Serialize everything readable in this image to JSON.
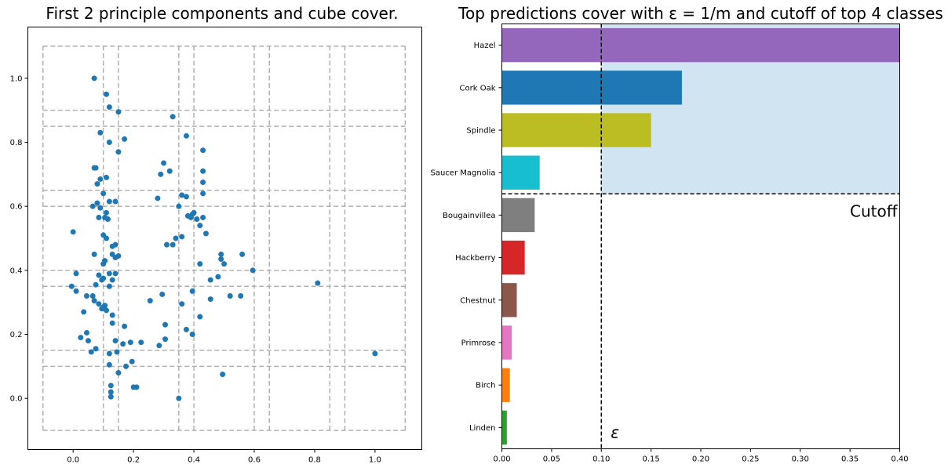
{
  "chart_data": [
    {
      "type": "scatter",
      "title": "First 2 principle components and cube cover.",
      "xlabel": "",
      "ylabel": "",
      "xlim": [
        -0.15,
        1.155
      ],
      "ylim": [
        -0.16,
        1.16
      ],
      "xticks": [
        "0.0",
        "0.2",
        "0.4",
        "0.6",
        "0.8",
        "1.0"
      ],
      "yticks": [
        "0.0",
        "0.2",
        "0.4",
        "0.6",
        "0.8",
        "1.0"
      ],
      "point_color": "#1f77b4",
      "grid": false,
      "cover_lines_x": [
        -0.1,
        0.1,
        0.15,
        0.35,
        0.4,
        0.6,
        0.65,
        0.85,
        0.9,
        1.1
      ],
      "cover_lines_y": [
        -0.1,
        0.1,
        0.15,
        0.35,
        0.4,
        0.6,
        0.65,
        0.85,
        0.9,
        1.1
      ],
      "cover_line_color": "#b0b0b0",
      "points": [
        [
          0.07,
          1.0
        ],
        [
          0.11,
          0.95
        ],
        [
          0.12,
          0.91
        ],
        [
          0.15,
          0.895
        ],
        [
          0.33,
          0.88
        ],
        [
          0.09,
          0.83
        ],
        [
          0.12,
          0.8
        ],
        [
          0.17,
          0.81
        ],
        [
          0.375,
          0.82
        ],
        [
          0.15,
          0.77
        ],
        [
          0.43,
          0.775
        ],
        [
          0.07,
          0.72
        ],
        [
          0.075,
          0.72
        ],
        [
          0.3,
          0.735
        ],
        [
          0.32,
          0.71
        ],
        [
          0.43,
          0.71
        ],
        [
          0.29,
          0.7
        ],
        [
          0.11,
          0.69
        ],
        [
          0.09,
          0.685
        ],
        [
          0.08,
          0.67
        ],
        [
          0.43,
          0.675
        ],
        [
          0.36,
          0.635
        ],
        [
          0.375,
          0.63
        ],
        [
          0.43,
          0.64
        ],
        [
          0.1,
          0.64
        ],
        [
          0.12,
          0.615
        ],
        [
          0.14,
          0.615
        ],
        [
          0.28,
          0.625
        ],
        [
          0.065,
          0.6
        ],
        [
          0.08,
          0.61
        ],
        [
          0.09,
          0.595
        ],
        [
          0.35,
          0.6
        ],
        [
          0.11,
          0.58
        ],
        [
          0.085,
          0.565
        ],
        [
          0.105,
          0.565
        ],
        [
          0.115,
          0.56
        ],
        [
          0.38,
          0.57
        ],
        [
          0.395,
          0.575
        ],
        [
          0.4,
          0.58
        ],
        [
          0.39,
          0.565
        ],
        [
          0.43,
          0.565
        ],
        [
          0.41,
          0.56
        ],
        [
          0.42,
          0.54
        ],
        [
          0.0,
          0.52
        ],
        [
          0.1,
          0.51
        ],
        [
          0.11,
          0.5
        ],
        [
          0.34,
          0.5
        ],
        [
          0.36,
          0.505
        ],
        [
          0.44,
          0.515
        ],
        [
          0.13,
          0.475
        ],
        [
          0.14,
          0.48
        ],
        [
          0.31,
          0.48
        ],
        [
          0.33,
          0.48
        ],
        [
          0.07,
          0.45
        ],
        [
          0.13,
          0.45
        ],
        [
          0.14,
          0.44
        ],
        [
          0.15,
          0.445
        ],
        [
          0.49,
          0.45
        ],
        [
          0.49,
          0.435
        ],
        [
          0.56,
          0.45
        ],
        [
          0.1,
          0.42
        ],
        [
          0.105,
          0.43
        ],
        [
          0.42,
          0.42
        ],
        [
          0.5,
          0.42
        ],
        [
          0.595,
          0.4
        ],
        [
          0.01,
          0.39
        ],
        [
          0.085,
          0.385
        ],
        [
          0.12,
          0.39
        ],
        [
          0.14,
          0.39
        ],
        [
          0.1,
          0.375
        ],
        [
          0.095,
          0.37
        ],
        [
          0.13,
          0.37
        ],
        [
          0.455,
          0.37
        ],
        [
          0.48,
          0.38
        ],
        [
          0.075,
          0.355
        ],
        [
          0.12,
          0.35
        ],
        [
          -0.005,
          0.35
        ],
        [
          0.01,
          0.335
        ],
        [
          0.045,
          0.32
        ],
        [
          0.065,
          0.32
        ],
        [
          0.07,
          0.305
        ],
        [
          0.81,
          0.36
        ],
        [
          0.52,
          0.32
        ],
        [
          0.555,
          0.32
        ],
        [
          0.295,
          0.325
        ],
        [
          0.085,
          0.295
        ],
        [
          0.1,
          0.285
        ],
        [
          0.105,
          0.29
        ],
        [
          0.11,
          0.275
        ],
        [
          0.095,
          0.28
        ],
        [
          0.255,
          0.305
        ],
        [
          0.36,
          0.295
        ],
        [
          0.395,
          0.335
        ],
        [
          0.455,
          0.31
        ],
        [
          0.035,
          0.27
        ],
        [
          0.13,
          0.26
        ],
        [
          0.42,
          0.255
        ],
        [
          0.13,
          0.235
        ],
        [
          0.17,
          0.225
        ],
        [
          0.305,
          0.23
        ],
        [
          0.375,
          0.215
        ],
        [
          0.045,
          0.205
        ],
        [
          0.025,
          0.19
        ],
        [
          0.05,
          0.18
        ],
        [
          0.14,
          0.18
        ],
        [
          0.165,
          0.17
        ],
        [
          0.19,
          0.175
        ],
        [
          0.225,
          0.175
        ],
        [
          0.395,
          0.2
        ],
        [
          0.305,
          0.185
        ],
        [
          0.285,
          0.165
        ],
        [
          0.075,
          0.155
        ],
        [
          0.06,
          0.145
        ],
        [
          0.12,
          0.14
        ],
        [
          0.145,
          0.145
        ],
        [
          1.0,
          0.14
        ],
        [
          0.195,
          0.115
        ],
        [
          0.12,
          0.105
        ],
        [
          0.175,
          0.1
        ],
        [
          0.15,
          0.08
        ],
        [
          0.495,
          0.075
        ],
        [
          0.125,
          0.04
        ],
        [
          0.2,
          0.035
        ],
        [
          0.21,
          0.035
        ],
        [
          0.125,
          0.02
        ],
        [
          0.125,
          0.005
        ],
        [
          0.35,
          0.0
        ]
      ]
    },
    {
      "type": "bar",
      "orientation": "horizontal",
      "title": "Top predictions cover with ε = 1/m and cutoff of top 4 classes",
      "xlabel": "",
      "ylabel": "",
      "xlim": [
        0.0,
        0.4
      ],
      "xticks": [
        "0.00",
        "0.05",
        "0.10",
        "0.15",
        "0.20",
        "0.25",
        "0.30",
        "0.35",
        "0.40"
      ],
      "grid": false,
      "categories": [
        "Hazel",
        "Cork Oak",
        "Spindle",
        "Saucer Magnolia",
        "Bougainvillea",
        "Hackberry",
        "Chestnut",
        "Primrose",
        "Birch",
        "Linden"
      ],
      "values": [
        0.41,
        0.181,
        0.15,
        0.038,
        0.033,
        0.023,
        0.015,
        0.01,
        0.008,
        0.005
      ],
      "colors": [
        "#9467bd",
        "#1f77b4",
        "#bcbd22",
        "#17becf",
        "#7f7f7f",
        "#d62728",
        "#8c564b",
        "#e377c2",
        "#ff7f0e",
        "#2ca02c"
      ],
      "epsilon": 0.1,
      "cutoff_after_index": 3,
      "cover_shade_color": "#d1e4f1",
      "annotations": {
        "cutoff_label": "Cutoff",
        "epsilon_label": "ε"
      }
    }
  ]
}
